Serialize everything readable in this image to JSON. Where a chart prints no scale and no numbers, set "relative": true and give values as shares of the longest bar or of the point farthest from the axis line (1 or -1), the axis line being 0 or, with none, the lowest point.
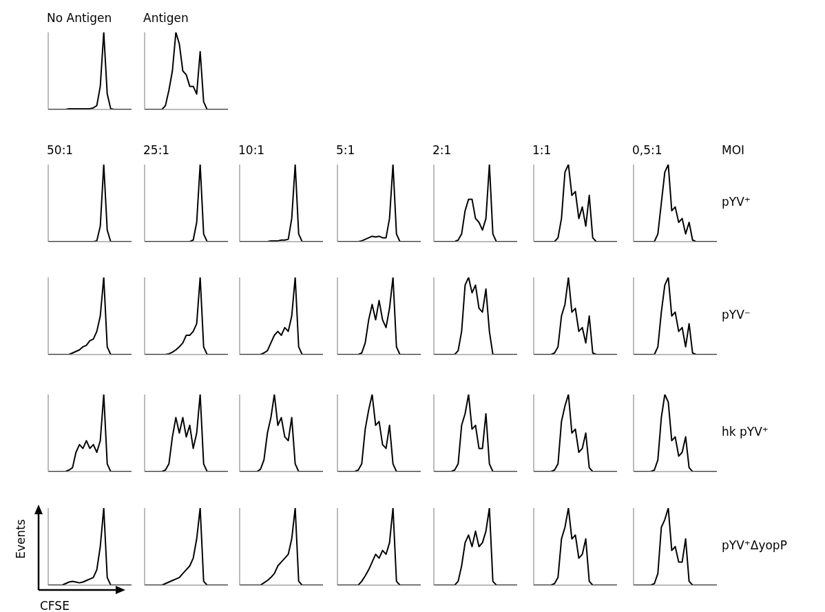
{
  "chart_data": [
    {
      "type": "line",
      "title": "No Antigen",
      "relative": true,
      "marker": "none",
      "line_style": "solid",
      "categories": [
        null,
        null,
        null,
        null,
        null,
        null,
        null,
        null,
        null,
        null,
        null,
        null,
        null,
        null,
        null,
        null,
        null,
        null,
        null,
        null,
        null,
        null,
        null,
        null,
        null
      ],
      "series": [
        {
          "color": "#000000",
          "values": [
            0,
            0,
            0,
            0,
            0,
            0,
            0.01,
            0.01,
            0.01,
            0.01,
            0.01,
            0.01,
            0.01,
            0.02,
            0.05,
            0.3,
            1,
            0.2,
            0.01,
            0,
            0,
            0,
            0,
            0,
            0
          ]
        }
      ]
    },
    {
      "type": "line",
      "title": "Antigen",
      "relative": true,
      "marker": "none",
      "line_style": "solid",
      "categories": [
        null,
        null,
        null,
        null,
        null,
        null,
        null,
        null,
        null,
        null,
        null,
        null,
        null,
        null,
        null,
        null,
        null,
        null,
        null,
        null,
        null,
        null,
        null,
        null,
        null
      ],
      "series": [
        {
          "color": "#000000",
          "values": [
            0,
            0,
            0,
            0,
            0,
            0,
            0.05,
            0.25,
            0.5,
            1,
            0.85,
            0.5,
            0.45,
            0.3,
            0.3,
            0.2,
            0.75,
            0.1,
            0,
            0,
            0,
            0,
            0,
            0,
            0
          ]
        }
      ]
    },
    {
      "type": "line",
      "title": "50:1",
      "relative": true,
      "marker": "none",
      "line_style": "solid",
      "categories": [
        null,
        null,
        null,
        null,
        null,
        null,
        null,
        null,
        null,
        null,
        null,
        null,
        null,
        null,
        null,
        null,
        null,
        null,
        null,
        null,
        null,
        null,
        null,
        null,
        null
      ],
      "series": [
        {
          "color": "#000000",
          "values": [
            0,
            0,
            0,
            0,
            0,
            0,
            0,
            0,
            0,
            0,
            0,
            0,
            0,
            0,
            0.01,
            0.2,
            1,
            0.15,
            0,
            0,
            0,
            0,
            0,
            0,
            0
          ]
        }
      ]
    },
    {
      "type": "line",
      "title": "25:1",
      "relative": true,
      "marker": "none",
      "line_style": "solid",
      "categories": [
        null,
        null,
        null,
        null,
        null,
        null,
        null,
        null,
        null,
        null,
        null,
        null,
        null,
        null,
        null,
        null,
        null,
        null,
        null,
        null,
        null,
        null,
        null,
        null,
        null
      ],
      "series": [
        {
          "color": "#000000",
          "values": [
            0,
            0,
            0,
            0,
            0,
            0,
            0,
            0,
            0,
            0,
            0,
            0,
            0,
            0,
            0.02,
            0.25,
            1,
            0.1,
            0,
            0,
            0,
            0,
            0,
            0,
            0
          ]
        }
      ]
    },
    {
      "type": "line",
      "title": "10:1",
      "relative": true,
      "marker": "none",
      "line_style": "solid",
      "categories": [
        null,
        null,
        null,
        null,
        null,
        null,
        null,
        null,
        null,
        null,
        null,
        null,
        null,
        null,
        null,
        null,
        null,
        null,
        null,
        null,
        null,
        null,
        null,
        null,
        null
      ],
      "series": [
        {
          "color": "#000000",
          "values": [
            0,
            0,
            0,
            0,
            0,
            0,
            0,
            0,
            0,
            0.01,
            0.01,
            0.01,
            0.02,
            0.02,
            0.03,
            0.3,
            1,
            0.1,
            0,
            0,
            0,
            0,
            0,
            0,
            0
          ]
        }
      ]
    },
    {
      "type": "line",
      "title": "5:1",
      "relative": true,
      "marker": "none",
      "line_style": "solid",
      "categories": [
        null,
        null,
        null,
        null,
        null,
        null,
        null,
        null,
        null,
        null,
        null,
        null,
        null,
        null,
        null,
        null,
        null,
        null,
        null,
        null,
        null,
        null,
        null,
        null,
        null
      ],
      "series": [
        {
          "color": "#000000",
          "values": [
            0,
            0,
            0,
            0,
            0,
            0,
            0,
            0.01,
            0.03,
            0.05,
            0.07,
            0.06,
            0.07,
            0.05,
            0.05,
            0.3,
            1,
            0.1,
            0,
            0,
            0,
            0,
            0,
            0,
            0
          ]
        }
      ]
    },
    {
      "type": "line",
      "title": "2:1",
      "relative": true,
      "marker": "none",
      "line_style": "solid",
      "categories": [
        null,
        null,
        null,
        null,
        null,
        null,
        null,
        null,
        null,
        null,
        null,
        null,
        null,
        null,
        null,
        null,
        null,
        null,
        null,
        null,
        null,
        null,
        null,
        null,
        null
      ],
      "series": [
        {
          "color": "#000000",
          "values": [
            0,
            0,
            0,
            0,
            0,
            0,
            0,
            0.02,
            0.1,
            0.4,
            0.55,
            0.55,
            0.3,
            0.25,
            0.15,
            0.3,
            1,
            0.1,
            0,
            0,
            0,
            0,
            0,
            0,
            0
          ]
        }
      ]
    },
    {
      "type": "line",
      "title": "1:1",
      "relative": true,
      "marker": "none",
      "line_style": "solid",
      "categories": [
        null,
        null,
        null,
        null,
        null,
        null,
        null,
        null,
        null,
        null,
        null,
        null,
        null,
        null,
        null,
        null,
        null,
        null,
        null,
        null,
        null,
        null,
        null,
        null,
        null
      ],
      "series": [
        {
          "color": "#000000",
          "values": [
            0,
            0,
            0,
            0,
            0,
            0,
            0,
            0.05,
            0.3,
            0.9,
            1,
            0.6,
            0.65,
            0.3,
            0.45,
            0.2,
            0.6,
            0.05,
            0,
            0,
            0,
            0,
            0,
            0,
            0
          ]
        }
      ]
    },
    {
      "type": "line",
      "title": "0,5:1",
      "annotations": [
        "MOI",
        "pYV⁺"
      ],
      "relative": true,
      "marker": "none",
      "line_style": "solid",
      "categories": [
        null,
        null,
        null,
        null,
        null,
        null,
        null,
        null,
        null,
        null,
        null,
        null,
        null,
        null,
        null,
        null,
        null,
        null,
        null,
        null,
        null,
        null,
        null,
        null,
        null
      ],
      "series": [
        {
          "color": "#000000",
          "values": [
            0,
            0,
            0,
            0,
            0,
            0,
            0,
            0.1,
            0.5,
            0.9,
            1,
            0.4,
            0.45,
            0.25,
            0.3,
            0.1,
            0.25,
            0.02,
            0,
            0,
            0,
            0,
            0,
            0,
            0
          ]
        }
      ]
    },
    {
      "type": "line",
      "relative": true,
      "marker": "none",
      "line_style": "solid",
      "categories": [
        null,
        null,
        null,
        null,
        null,
        null,
        null,
        null,
        null,
        null,
        null,
        null,
        null,
        null,
        null,
        null,
        null,
        null,
        null,
        null,
        null,
        null,
        null,
        null,
        null
      ],
      "series": [
        {
          "color": "#000000",
          "values": [
            0,
            0,
            0,
            0,
            0,
            0,
            0,
            0.02,
            0.04,
            0.06,
            0.1,
            0.12,
            0.18,
            0.2,
            0.3,
            0.5,
            1,
            0.1,
            0,
            0,
            0,
            0,
            0,
            0,
            0
          ]
        }
      ]
    },
    {
      "type": "line",
      "relative": true,
      "marker": "none",
      "line_style": "solid",
      "categories": [
        null,
        null,
        null,
        null,
        null,
        null,
        null,
        null,
        null,
        null,
        null,
        null,
        null,
        null,
        null,
        null,
        null,
        null,
        null,
        null,
        null,
        null,
        null,
        null,
        null
      ],
      "series": [
        {
          "color": "#000000",
          "values": [
            0,
            0,
            0,
            0,
            0,
            0,
            0,
            0.01,
            0.03,
            0.06,
            0.1,
            0.15,
            0.25,
            0.25,
            0.3,
            0.4,
            1,
            0.1,
            0,
            0,
            0,
            0,
            0,
            0,
            0
          ]
        }
      ]
    },
    {
      "type": "line",
      "relative": true,
      "marker": "none",
      "line_style": "solid",
      "categories": [
        null,
        null,
        null,
        null,
        null,
        null,
        null,
        null,
        null,
        null,
        null,
        null,
        null,
        null,
        null,
        null,
        null,
        null,
        null,
        null,
        null,
        null,
        null,
        null,
        null
      ],
      "series": [
        {
          "color": "#000000",
          "values": [
            0,
            0,
            0,
            0,
            0,
            0,
            0,
            0.02,
            0.05,
            0.15,
            0.25,
            0.3,
            0.25,
            0.35,
            0.3,
            0.5,
            1,
            0.1,
            0,
            0,
            0,
            0,
            0,
            0,
            0
          ]
        }
      ]
    },
    {
      "type": "line",
      "relative": true,
      "marker": "none",
      "line_style": "solid",
      "categories": [
        null,
        null,
        null,
        null,
        null,
        null,
        null,
        null,
        null,
        null,
        null,
        null,
        null,
        null,
        null,
        null,
        null,
        null,
        null,
        null,
        null,
        null,
        null,
        null,
        null
      ],
      "series": [
        {
          "color": "#000000",
          "values": [
            0,
            0,
            0,
            0,
            0,
            0,
            0,
            0.02,
            0.15,
            0.45,
            0.65,
            0.45,
            0.7,
            0.45,
            0.35,
            0.6,
            1,
            0.1,
            0,
            0,
            0,
            0,
            0,
            0,
            0
          ]
        }
      ]
    },
    {
      "type": "line",
      "relative": true,
      "marker": "none",
      "line_style": "solid",
      "categories": [
        null,
        null,
        null,
        null,
        null,
        null,
        null,
        null,
        null,
        null,
        null,
        null,
        null,
        null,
        null,
        null,
        null,
        null,
        null,
        null,
        null,
        null,
        null,
        null,
        null
      ],
      "series": [
        {
          "color": "#000000",
          "values": [
            0,
            0,
            0,
            0,
            0,
            0,
            0,
            0.05,
            0.3,
            0.9,
            1,
            0.8,
            0.9,
            0.6,
            0.55,
            0.85,
            0.3,
            0,
            0,
            0,
            0,
            0,
            0,
            0,
            0
          ]
        }
      ]
    },
    {
      "type": "line",
      "relative": true,
      "marker": "none",
      "line_style": "solid",
      "categories": [
        null,
        null,
        null,
        null,
        null,
        null,
        null,
        null,
        null,
        null,
        null,
        null,
        null,
        null,
        null,
        null,
        null,
        null,
        null,
        null,
        null,
        null,
        null,
        null,
        null
      ],
      "series": [
        {
          "color": "#000000",
          "values": [
            0,
            0,
            0,
            0,
            0,
            0,
            0.02,
            0.1,
            0.5,
            0.65,
            1,
            0.55,
            0.6,
            0.3,
            0.35,
            0.15,
            0.5,
            0.02,
            0,
            0,
            0,
            0,
            0,
            0,
            0
          ]
        }
      ]
    },
    {
      "type": "line",
      "annotations": [
        "pYV⁻"
      ],
      "relative": true,
      "marker": "none",
      "line_style": "solid",
      "categories": [
        null,
        null,
        null,
        null,
        null,
        null,
        null,
        null,
        null,
        null,
        null,
        null,
        null,
        null,
        null,
        null,
        null,
        null,
        null,
        null,
        null,
        null,
        null,
        null,
        null
      ],
      "series": [
        {
          "color": "#000000",
          "values": [
            0,
            0,
            0,
            0,
            0,
            0,
            0,
            0.1,
            0.55,
            0.9,
            1,
            0.5,
            0.55,
            0.3,
            0.35,
            0.1,
            0.4,
            0.02,
            0,
            0,
            0,
            0,
            0,
            0,
            0
          ]
        }
      ]
    },
    {
      "type": "line",
      "relative": true,
      "marker": "none",
      "line_style": "solid",
      "categories": [
        null,
        null,
        null,
        null,
        null,
        null,
        null,
        null,
        null,
        null,
        null,
        null,
        null,
        null,
        null,
        null,
        null,
        null,
        null,
        null,
        null,
        null,
        null,
        null,
        null
      ],
      "series": [
        {
          "color": "#000000",
          "values": [
            0,
            0,
            0,
            0,
            0,
            0,
            0.02,
            0.05,
            0.25,
            0.35,
            0.3,
            0.4,
            0.3,
            0.35,
            0.25,
            0.4,
            1,
            0.1,
            0,
            0,
            0,
            0,
            0,
            0,
            0
          ]
        }
      ]
    },
    {
      "type": "line",
      "relative": true,
      "marker": "none",
      "line_style": "solid",
      "categories": [
        null,
        null,
        null,
        null,
        null,
        null,
        null,
        null,
        null,
        null,
        null,
        null,
        null,
        null,
        null,
        null,
        null,
        null,
        null,
        null,
        null,
        null,
        null,
        null,
        null
      ],
      "series": [
        {
          "color": "#000000",
          "values": [
            0,
            0,
            0,
            0,
            0,
            0,
            0.02,
            0.1,
            0.45,
            0.7,
            0.5,
            0.7,
            0.45,
            0.6,
            0.3,
            0.5,
            1,
            0.1,
            0,
            0,
            0,
            0,
            0,
            0,
            0
          ]
        }
      ]
    },
    {
      "type": "line",
      "relative": true,
      "marker": "none",
      "line_style": "solid",
      "categories": [
        null,
        null,
        null,
        null,
        null,
        null,
        null,
        null,
        null,
        null,
        null,
        null,
        null,
        null,
        null,
        null,
        null,
        null,
        null,
        null,
        null,
        null,
        null,
        null,
        null
      ],
      "series": [
        {
          "color": "#000000",
          "values": [
            0,
            0,
            0,
            0,
            0,
            0,
            0.03,
            0.15,
            0.5,
            0.7,
            1,
            0.6,
            0.7,
            0.45,
            0.4,
            0.7,
            0.1,
            0,
            0,
            0,
            0,
            0,
            0,
            0,
            0
          ]
        }
      ]
    },
    {
      "type": "line",
      "relative": true,
      "marker": "none",
      "line_style": "solid",
      "categories": [
        null,
        null,
        null,
        null,
        null,
        null,
        null,
        null,
        null,
        null,
        null,
        null,
        null,
        null,
        null,
        null,
        null,
        null,
        null,
        null,
        null,
        null,
        null,
        null,
        null
      ],
      "series": [
        {
          "color": "#000000",
          "values": [
            0,
            0,
            0,
            0,
            0,
            0,
            0.02,
            0.1,
            0.55,
            0.8,
            1,
            0.6,
            0.65,
            0.35,
            0.3,
            0.6,
            0.1,
            0,
            0,
            0,
            0,
            0,
            0,
            0,
            0
          ]
        }
      ]
    },
    {
      "type": "line",
      "relative": true,
      "marker": "none",
      "line_style": "solid",
      "categories": [
        null,
        null,
        null,
        null,
        null,
        null,
        null,
        null,
        null,
        null,
        null,
        null,
        null,
        null,
        null,
        null,
        null,
        null,
        null,
        null,
        null,
        null,
        null,
        null,
        null
      ],
      "series": [
        {
          "color": "#000000",
          "values": [
            0,
            0,
            0,
            0,
            0,
            0,
            0.02,
            0.1,
            0.6,
            0.75,
            1,
            0.55,
            0.6,
            0.3,
            0.3,
            0.75,
            0.1,
            0,
            0,
            0,
            0,
            0,
            0,
            0,
            0
          ]
        }
      ]
    },
    {
      "type": "line",
      "relative": true,
      "marker": "none",
      "line_style": "solid",
      "categories": [
        null,
        null,
        null,
        null,
        null,
        null,
        null,
        null,
        null,
        null,
        null,
        null,
        null,
        null,
        null,
        null,
        null,
        null,
        null,
        null,
        null,
        null,
        null,
        null,
        null
      ],
      "series": [
        {
          "color": "#000000",
          "values": [
            0,
            0,
            0,
            0,
            0,
            0,
            0.02,
            0.1,
            0.65,
            0.85,
            1,
            0.5,
            0.55,
            0.25,
            0.3,
            0.5,
            0.05,
            0,
            0,
            0,
            0,
            0,
            0,
            0,
            0
          ]
        }
      ]
    },
    {
      "type": "line",
      "annotations": [
        "hk pYV⁺"
      ],
      "relative": true,
      "marker": "none",
      "line_style": "solid",
      "categories": [
        null,
        null,
        null,
        null,
        null,
        null,
        null,
        null,
        null,
        null,
        null,
        null,
        null,
        null,
        null,
        null,
        null,
        null,
        null,
        null,
        null,
        null,
        null,
        null,
        null
      ],
      "series": [
        {
          "color": "#000000",
          "values": [
            0,
            0,
            0,
            0,
            0,
            0,
            0.02,
            0.15,
            0.7,
            1,
            0.9,
            0.4,
            0.45,
            0.2,
            0.25,
            0.45,
            0.05,
            0,
            0,
            0,
            0,
            0,
            0,
            0,
            0
          ]
        }
      ]
    },
    {
      "type": "line",
      "xlabel": "CFSE",
      "ylabel": "Events",
      "relative": true,
      "marker": "none",
      "line_style": "solid",
      "categories": [
        null,
        null,
        null,
        null,
        null,
        null,
        null,
        null,
        null,
        null,
        null,
        null,
        null,
        null,
        null,
        null,
        null,
        null,
        null,
        null,
        null,
        null,
        null,
        null,
        null
      ],
      "series": [
        {
          "color": "#000000",
          "values": [
            0,
            0,
            0,
            0,
            0,
            0.02,
            0.04,
            0.05,
            0.04,
            0.03,
            0.04,
            0.06,
            0.08,
            0.1,
            0.2,
            0.5,
            1,
            0.1,
            0,
            0,
            0,
            0,
            0,
            0,
            0
          ]
        }
      ]
    },
    {
      "type": "line",
      "relative": true,
      "marker": "none",
      "line_style": "solid",
      "categories": [
        null,
        null,
        null,
        null,
        null,
        null,
        null,
        null,
        null,
        null,
        null,
        null,
        null,
        null,
        null,
        null,
        null,
        null,
        null,
        null,
        null,
        null,
        null,
        null,
        null
      ],
      "series": [
        {
          "color": "#000000",
          "values": [
            0,
            0,
            0,
            0,
            0,
            0,
            0.02,
            0.04,
            0.06,
            0.08,
            0.1,
            0.15,
            0.2,
            0.25,
            0.35,
            0.6,
            1,
            0.05,
            0,
            0,
            0,
            0,
            0,
            0,
            0
          ]
        }
      ]
    },
    {
      "type": "line",
      "relative": true,
      "marker": "none",
      "line_style": "solid",
      "categories": [
        null,
        null,
        null,
        null,
        null,
        null,
        null,
        null,
        null,
        null,
        null,
        null,
        null,
        null,
        null,
        null,
        null,
        null,
        null,
        null,
        null,
        null,
        null,
        null,
        null
      ],
      "series": [
        {
          "color": "#000000",
          "values": [
            0,
            0,
            0,
            0,
            0,
            0,
            0,
            0.03,
            0.06,
            0.1,
            0.15,
            0.25,
            0.3,
            0.35,
            0.4,
            0.6,
            1,
            0.05,
            0,
            0,
            0,
            0,
            0,
            0,
            0
          ]
        }
      ]
    },
    {
      "type": "line",
      "relative": true,
      "marker": "none",
      "line_style": "solid",
      "categories": [
        null,
        null,
        null,
        null,
        null,
        null,
        null,
        null,
        null,
        null,
        null,
        null,
        null,
        null,
        null,
        null,
        null,
        null,
        null,
        null,
        null,
        null,
        null,
        null,
        null
      ],
      "series": [
        {
          "color": "#000000",
          "values": [
            0,
            0,
            0,
            0,
            0,
            0,
            0,
            0.05,
            0.12,
            0.2,
            0.3,
            0.4,
            0.35,
            0.45,
            0.4,
            0.55,
            1,
            0.05,
            0,
            0,
            0,
            0,
            0,
            0,
            0
          ]
        }
      ]
    },
    {
      "type": "line",
      "relative": true,
      "marker": "none",
      "line_style": "solid",
      "categories": [
        null,
        null,
        null,
        null,
        null,
        null,
        null,
        null,
        null,
        null,
        null,
        null,
        null,
        null,
        null,
        null,
        null,
        null,
        null,
        null,
        null,
        null,
        null,
        null,
        null
      ],
      "series": [
        {
          "color": "#000000",
          "values": [
            0,
            0,
            0,
            0,
            0,
            0,
            0,
            0.05,
            0.25,
            0.55,
            0.65,
            0.5,
            0.7,
            0.5,
            0.55,
            0.7,
            1,
            0.05,
            0,
            0,
            0,
            0,
            0,
            0,
            0
          ]
        }
      ]
    },
    {
      "type": "line",
      "relative": true,
      "marker": "none",
      "line_style": "solid",
      "categories": [
        null,
        null,
        null,
        null,
        null,
        null,
        null,
        null,
        null,
        null,
        null,
        null,
        null,
        null,
        null,
        null,
        null,
        null,
        null,
        null,
        null,
        null,
        null,
        null,
        null
      ],
      "series": [
        {
          "color": "#000000",
          "values": [
            0,
            0,
            0,
            0,
            0,
            0,
            0.02,
            0.1,
            0.6,
            0.75,
            1,
            0.6,
            0.65,
            0.35,
            0.4,
            0.6,
            0.05,
            0,
            0,
            0,
            0,
            0,
            0,
            0,
            0
          ]
        }
      ]
    },
    {
      "type": "line",
      "annotations": [
        "pYV⁺ΔyopP"
      ],
      "relative": true,
      "marker": "none",
      "line_style": "solid",
      "categories": [
        null,
        null,
        null,
        null,
        null,
        null,
        null,
        null,
        null,
        null,
        null,
        null,
        null,
        null,
        null,
        null,
        null,
        null,
        null,
        null,
        null,
        null,
        null,
        null,
        null
      ],
      "series": [
        {
          "color": "#000000",
          "values": [
            0,
            0,
            0,
            0,
            0,
            0,
            0.02,
            0.15,
            0.75,
            0.85,
            1,
            0.45,
            0.5,
            0.3,
            0.3,
            0.6,
            0.05,
            0,
            0,
            0,
            0,
            0,
            0,
            0,
            0
          ]
        }
      ]
    }
  ]
}
